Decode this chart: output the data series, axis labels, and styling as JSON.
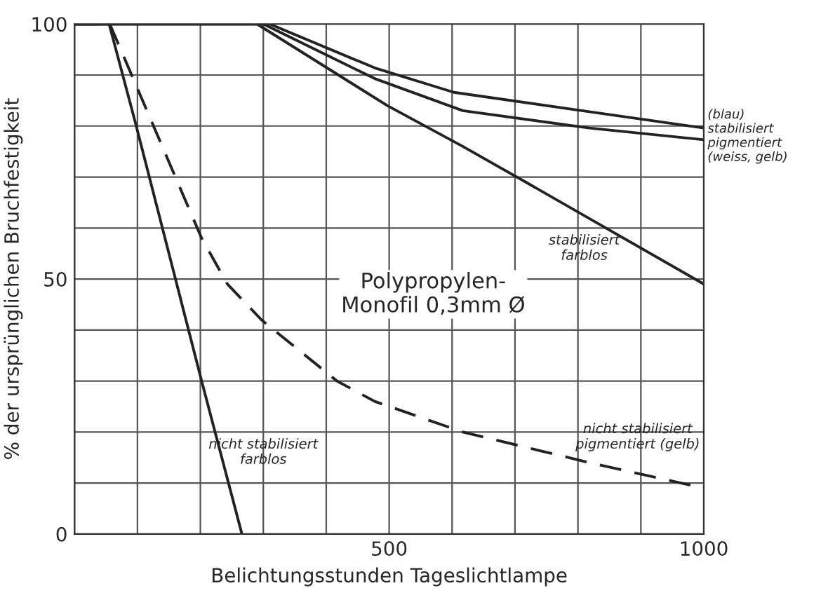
{
  "chart_data": {
    "type": "line",
    "title": "Polypropylen-\nMonofil 0,3mm Ø",
    "xlabel": "Belichtungsstunden Tageslichtlampe",
    "ylabel": "% der ursprünglichen Bruchfestigkeit",
    "series": [
      {
        "color": "#222222",
        "line_style": "solid",
        "x": [
          0,
          310,
          477,
          603,
          818,
          1000
        ],
        "values": [
          100,
          100,
          91.4,
          86.6,
          82.8,
          79.6
        ]
      },
      {
        "color": "#222222",
        "line_style": "solid",
        "x": [
          0,
          300,
          477,
          617,
          818,
          1000
        ],
        "values": [
          100,
          100,
          89.3,
          83,
          79.6,
          77.3
        ]
      },
      {
        "name": "stabilisiert\nfarblos",
        "color": "#222222",
        "line_style": "solid",
        "x": [
          0,
          290,
          497,
          617,
          717,
          1000
        ],
        "values": [
          100,
          100,
          84,
          76,
          69,
          49
        ]
      },
      {
        "name": "nicht stabilisiert\nfarblos",
        "color": "#222222",
        "line_style": "solid",
        "x": [
          0,
          55,
          96,
          202,
          266
        ],
        "values": [
          100,
          100,
          81,
          30,
          0
        ]
      },
      {
        "name": "nicht stabilisiert\npigmentiert (gelb)",
        "color": "#222222",
        "line_style": "dashed",
        "x": [
          0,
          56,
          202,
          243,
          297,
          417,
          477,
          617,
          818,
          1000
        ],
        "values": [
          100,
          100,
          58,
          49,
          42,
          30,
          26,
          20,
          14,
          9
        ]
      }
    ],
    "xlim": [
      0,
      1000
    ],
    "ylim": [
      0,
      100
    ],
    "xticks": [
      {
        "value": 0,
        "label": null
      },
      {
        "value": 100,
        "label": null
      },
      {
        "value": 200,
        "label": null
      },
      {
        "value": 300,
        "label": null
      },
      {
        "value": 400,
        "label": null
      },
      500,
      {
        "value": 600,
        "label": null
      },
      {
        "value": 700,
        "label": null
      },
      {
        "value": 800,
        "label": null
      },
      {
        "value": 900,
        "label": null
      },
      1000
    ],
    "yticks": [
      0,
      {
        "value": 10,
        "label": null
      },
      {
        "value": 20,
        "label": null
      },
      {
        "value": 30,
        "label": null
      },
      {
        "value": 40,
        "label": null
      },
      50,
      {
        "value": 60,
        "label": null
      },
      {
        "value": 70,
        "label": null
      },
      {
        "value": 80,
        "label": null
      },
      {
        "value": 90,
        "label": null
      },
      100
    ],
    "grid": true,
    "legend": false,
    "annotations": [
      "(blau)\nstabilisiert\npigmentiert\n(weiss, gelb)"
    ]
  }
}
